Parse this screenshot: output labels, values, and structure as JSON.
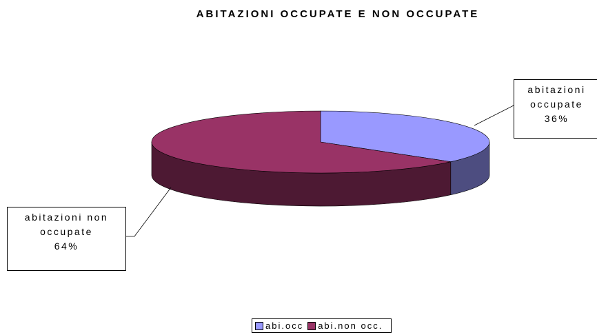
{
  "chart_data": {
    "type": "pie",
    "title": "ABITAZIONI OCCUPATE E NON OCCUPATE",
    "categories": [
      "abi.occ",
      "abi.non occ."
    ],
    "label_names": [
      "abitazioni occupate",
      "abitazioni non occupate"
    ],
    "values": [
      36,
      64
    ],
    "value_labels": [
      "36%",
      "64%"
    ],
    "colors": [
      "#9999ff",
      "#993366"
    ],
    "side_colors": [
      "#4d4d80",
      "#4d1933"
    ],
    "legend": "bottom"
  }
}
